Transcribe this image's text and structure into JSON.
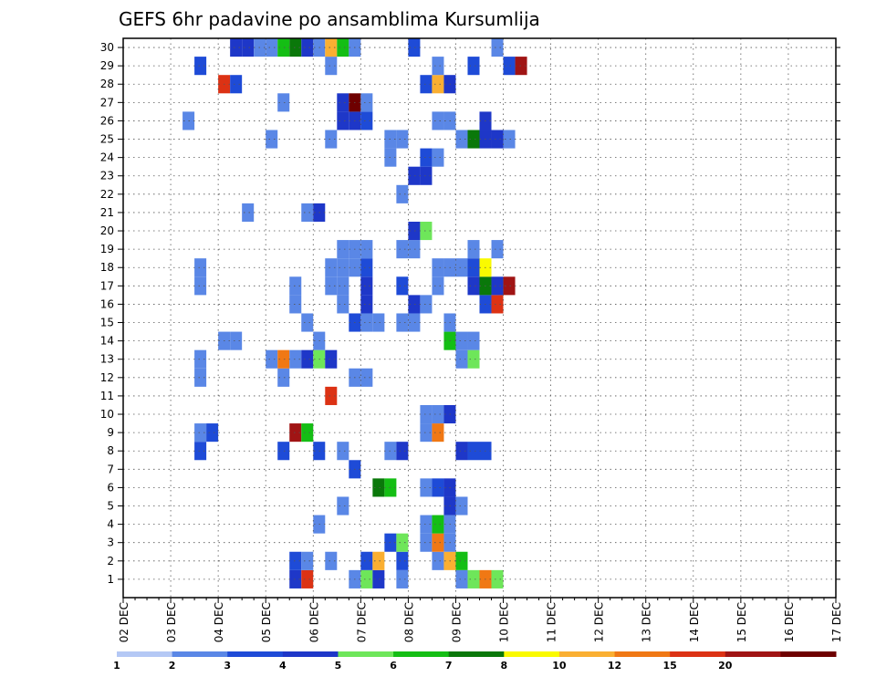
{
  "chart_data": {
    "type": "heatmap",
    "title": "GEFS 6hr padavine po ansamblima Kursumlija",
    "xlabel": "",
    "ylabel": "",
    "x_ticks": [
      "02 DEC",
      "03 DEC",
      "04 DEC",
      "05 DEC",
      "06 DEC",
      "07 DEC",
      "08 DEC",
      "09 DEC",
      "10 DEC",
      "11 DEC",
      "12 DEC",
      "13 DEC",
      "14 DEC",
      "15 DEC",
      "16 DEC",
      "17 DEC"
    ],
    "y_ticks": [
      "1",
      "2",
      "3",
      "4",
      "5",
      "6",
      "7",
      "8",
      "9",
      "10",
      "11",
      "12",
      "13",
      "14",
      "15",
      "16",
      "17",
      "18",
      "19",
      "20",
      "21",
      "22",
      "23",
      "24",
      "25",
      "26",
      "27",
      "28",
      "29",
      "30"
    ],
    "x_range": [
      "02 DEC 00h",
      "17 DEC 00h"
    ],
    "time_step_hours": 6,
    "y_range": [
      0,
      30
    ],
    "grid": true,
    "colorbar": {
      "position": "bottom",
      "labels": [
        "1",
        "2",
        "3",
        "4",
        "5",
        "6",
        "7",
        "8",
        "10",
        "12",
        "15",
        "20"
      ],
      "colors": [
        "#b4c8f5",
        "#5a87e6",
        "#1e4bd7",
        "#1e37c8",
        "#6ee65a",
        "#14be14",
        "#0a780a",
        "#fafa00",
        "#faaf32",
        "#f07814",
        "#dc3214",
        "#a01414",
        "#6e0000"
      ]
    },
    "cell_values": [
      [
        1,
        14,
        3
      ],
      [
        1,
        15,
        12
      ],
      [
        1,
        19,
        1
      ],
      [
        1,
        20,
        4
      ],
      [
        1,
        21,
        3
      ],
      [
        1,
        23,
        1
      ],
      [
        1,
        28,
        1
      ],
      [
        1,
        29,
        4
      ],
      [
        1,
        30,
        10
      ],
      [
        1,
        31,
        4
      ],
      [
        2,
        14,
        2
      ],
      [
        2,
        15,
        1
      ],
      [
        2,
        17,
        1
      ],
      [
        2,
        20,
        2
      ],
      [
        2,
        21,
        8
      ],
      [
        2,
        23,
        2
      ],
      [
        2,
        26,
        1
      ],
      [
        2,
        27,
        8
      ],
      [
        2,
        28,
        5
      ],
      [
        3,
        22,
        2
      ],
      [
        3,
        23,
        4
      ],
      [
        3,
        25,
        1
      ],
      [
        3,
        26,
        10
      ],
      [
        3,
        27,
        1
      ],
      [
        4,
        16,
        1
      ],
      [
        4,
        25,
        1
      ],
      [
        4,
        26,
        5
      ],
      [
        4,
        27,
        1
      ],
      [
        5,
        18,
        1
      ],
      [
        5,
        27,
        3
      ],
      [
        5,
        28,
        1
      ],
      [
        6,
        21,
        6
      ],
      [
        6,
        22,
        5
      ],
      [
        6,
        25,
        1
      ],
      [
        6,
        26,
        2
      ],
      [
        6,
        27,
        3
      ],
      [
        7,
        19,
        2
      ],
      [
        8,
        6,
        2
      ],
      [
        8,
        13,
        2
      ],
      [
        8,
        16,
        2
      ],
      [
        8,
        18,
        1
      ],
      [
        8,
        22,
        1
      ],
      [
        8,
        23,
        3
      ],
      [
        8,
        28,
        3
      ],
      [
        8,
        29,
        2
      ],
      [
        8,
        30,
        2
      ],
      [
        9,
        6,
        1
      ],
      [
        9,
        7,
        2
      ],
      [
        9,
        14,
        15
      ],
      [
        9,
        15,
        5
      ],
      [
        9,
        25,
        1
      ],
      [
        9,
        26,
        10
      ],
      [
        10,
        25,
        1
      ],
      [
        10,
        26,
        1
      ],
      [
        10,
        27,
        3
      ],
      [
        11,
        17,
        12
      ],
      [
        12,
        6,
        1
      ],
      [
        12,
        13,
        1
      ],
      [
        12,
        19,
        1
      ],
      [
        12,
        20,
        1
      ],
      [
        13,
        6,
        1
      ],
      [
        13,
        12,
        1
      ],
      [
        13,
        13,
        10
      ],
      [
        13,
        14,
        1
      ],
      [
        13,
        15,
        3
      ],
      [
        13,
        16,
        4
      ],
      [
        13,
        17,
        3
      ],
      [
        13,
        28,
        1
      ],
      [
        13,
        29,
        4
      ],
      [
        14,
        8,
        1
      ],
      [
        14,
        9,
        1
      ],
      [
        14,
        16,
        1
      ],
      [
        14,
        27,
        5
      ],
      [
        14,
        28,
        1
      ],
      [
        14,
        29,
        1
      ],
      [
        15,
        15,
        1
      ],
      [
        15,
        19,
        2
      ],
      [
        15,
        20,
        1
      ],
      [
        15,
        21,
        1
      ],
      [
        15,
        23,
        1
      ],
      [
        15,
        24,
        1
      ],
      [
        15,
        27,
        1
      ],
      [
        16,
        14,
        1
      ],
      [
        16,
        18,
        1
      ],
      [
        16,
        20,
        3
      ],
      [
        16,
        24,
        3
      ],
      [
        16,
        25,
        1
      ],
      [
        16,
        30,
        2
      ],
      [
        16,
        31,
        12
      ],
      [
        17,
        6,
        1
      ],
      [
        17,
        14,
        1
      ],
      [
        17,
        17,
        1
      ],
      [
        17,
        18,
        1
      ],
      [
        17,
        20,
        3
      ],
      [
        17,
        23,
        2
      ],
      [
        17,
        26,
        1
      ],
      [
        17,
        29,
        3
      ],
      [
        17,
        30,
        6
      ],
      [
        17,
        31,
        3
      ],
      [
        17,
        32,
        15
      ],
      [
        18,
        6,
        1
      ],
      [
        18,
        17,
        1
      ],
      [
        18,
        18,
        1
      ],
      [
        18,
        19,
        1
      ],
      [
        18,
        20,
        2
      ],
      [
        18,
        26,
        1
      ],
      [
        18,
        27,
        1
      ],
      [
        18,
        28,
        1
      ],
      [
        18,
        29,
        2
      ],
      [
        18,
        30,
        7
      ],
      [
        19,
        18,
        1
      ],
      [
        19,
        19,
        1
      ],
      [
        19,
        20,
        1
      ],
      [
        19,
        23,
        1
      ],
      [
        19,
        24,
        1
      ],
      [
        19,
        29,
        1
      ],
      [
        19,
        31,
        1
      ],
      [
        20,
        24,
        3
      ],
      [
        20,
        25,
        4
      ],
      [
        21,
        10,
        1
      ],
      [
        21,
        15,
        1
      ],
      [
        21,
        16,
        3
      ],
      [
        22,
        23,
        1
      ],
      [
        23,
        24,
        3
      ],
      [
        23,
        25,
        3
      ],
      [
        24,
        22,
        1
      ],
      [
        24,
        25,
        2
      ],
      [
        24,
        26,
        1
      ],
      [
        25,
        12,
        1
      ],
      [
        25,
        17,
        1
      ],
      [
        25,
        22,
        1
      ],
      [
        25,
        23,
        1
      ],
      [
        25,
        28,
        1
      ],
      [
        25,
        29,
        6
      ],
      [
        25,
        30,
        3
      ],
      [
        25,
        31,
        3
      ],
      [
        25,
        32,
        1
      ],
      [
        26,
        5,
        1
      ],
      [
        26,
        18,
        3
      ],
      [
        26,
        19,
        3
      ],
      [
        26,
        20,
        2
      ],
      [
        26,
        26,
        1
      ],
      [
        26,
        27,
        1
      ],
      [
        26,
        30,
        3
      ],
      [
        27,
        13,
        1
      ],
      [
        27,
        18,
        3
      ],
      [
        27,
        19,
        20
      ],
      [
        27,
        20,
        1
      ],
      [
        28,
        8,
        12
      ],
      [
        28,
        9,
        2
      ],
      [
        28,
        25,
        2
      ],
      [
        28,
        26,
        8
      ],
      [
        28,
        27,
        3
      ],
      [
        29,
        6,
        2
      ],
      [
        29,
        17,
        1
      ],
      [
        29,
        26,
        1
      ],
      [
        29,
        29,
        2
      ],
      [
        29,
        32,
        2
      ],
      [
        29,
        33,
        15
      ],
      [
        30,
        9,
        3
      ],
      [
        30,
        10,
        3
      ],
      [
        30,
        11,
        1
      ],
      [
        30,
        12,
        1
      ],
      [
        30,
        13,
        5
      ],
      [
        30,
        14,
        6
      ],
      [
        30,
        15,
        3
      ],
      [
        30,
        16,
        1
      ],
      [
        30,
        17,
        8
      ],
      [
        30,
        18,
        5
      ],
      [
        30,
        19,
        1
      ],
      [
        30,
        24,
        2
      ],
      [
        30,
        31,
        1
      ]
    ]
  }
}
